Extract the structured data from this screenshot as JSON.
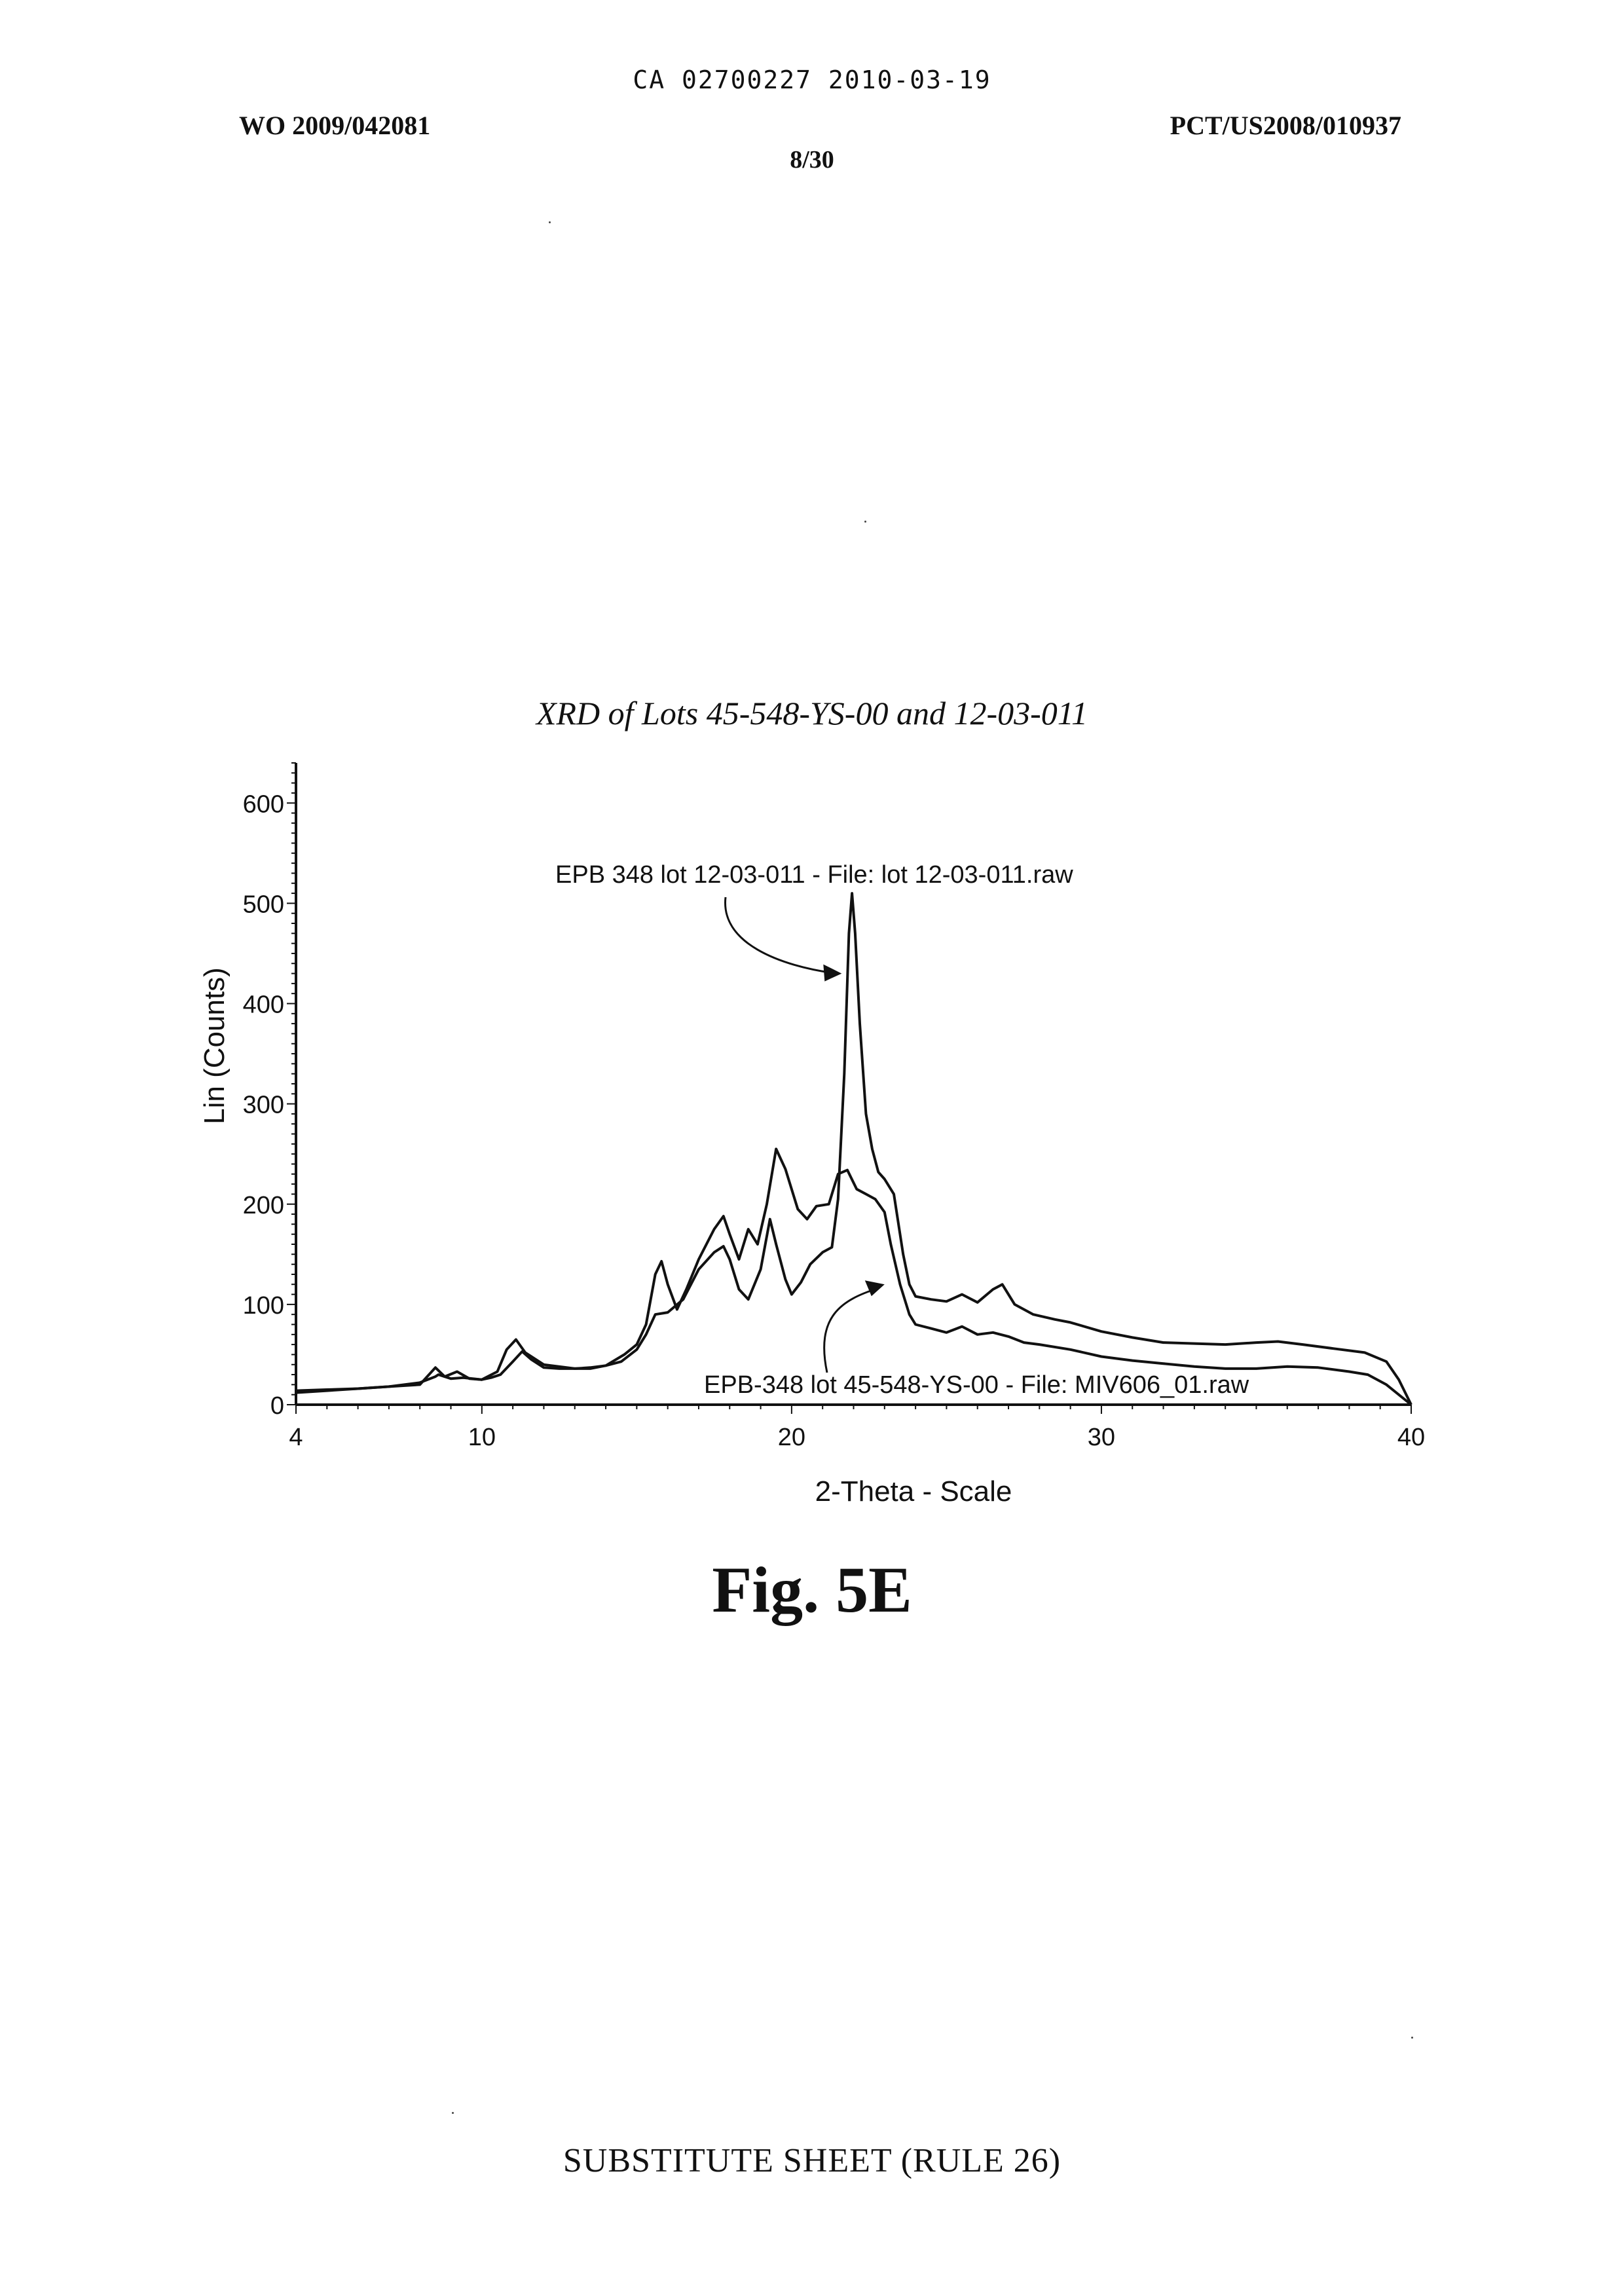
{
  "header": {
    "ca_number": "CA 02700227 2010-03-19",
    "wo_number": "WO 2009/042081",
    "pct_number": "PCT/US2008/010937",
    "sheet_number": "8/30"
  },
  "figure_label": "Fig. 5E",
  "footer": "SUBSTITUTE SHEET (RULE 26)",
  "chart_data": {
    "type": "line",
    "title": "XRD of Lots 45-548-YS-00 and 12-03-011",
    "xlabel": "2-Theta - Scale",
    "ylabel": "Lin (Counts)",
    "xlim": [
      4,
      40
    ],
    "ylim": [
      0,
      640
    ],
    "x_ticks": [
      4,
      10,
      20,
      30,
      40
    ],
    "y_ticks": [
      0,
      100,
      200,
      300,
      400,
      500,
      600
    ],
    "grid": false,
    "annotations": [
      {
        "text": "EPB 348 lot 12-03-011 - File: lot 12-03-011.raw",
        "x": 21.7,
        "y": 430
      },
      {
        "text": "EPB-348 lot 45-548-YS-00 - File: MIV606_01.raw",
        "x": 23.0,
        "y": 120
      }
    ],
    "series": [
      {
        "name": "EPB 348 lot 12-03-011 - File: lot 12-03-011.raw",
        "points": [
          [
            4,
            14
          ],
          [
            5,
            15
          ],
          [
            6,
            16
          ],
          [
            7,
            18
          ],
          [
            8,
            22
          ],
          [
            8.5,
            28
          ],
          [
            8.6,
            30
          ],
          [
            9,
            26
          ],
          [
            9.4,
            27
          ],
          [
            10,
            25
          ],
          [
            10.3,
            27
          ],
          [
            10.6,
            30
          ],
          [
            11,
            43
          ],
          [
            11.3,
            53
          ],
          [
            11.6,
            45
          ],
          [
            12,
            37
          ],
          [
            12.5,
            36
          ],
          [
            13,
            36
          ],
          [
            13.5,
            37
          ],
          [
            14,
            39
          ],
          [
            14.5,
            43
          ],
          [
            15,
            55
          ],
          [
            15.3,
            70
          ],
          [
            15.6,
            90
          ],
          [
            16,
            92
          ],
          [
            16.5,
            105
          ],
          [
            17,
            135
          ],
          [
            17.5,
            152
          ],
          [
            17.8,
            158
          ],
          [
            18,
            145
          ],
          [
            18.3,
            115
          ],
          [
            18.6,
            105
          ],
          [
            19,
            135
          ],
          [
            19.3,
            185
          ],
          [
            19.5,
            160
          ],
          [
            19.8,
            125
          ],
          [
            20,
            110
          ],
          [
            20.3,
            122
          ],
          [
            20.6,
            140
          ],
          [
            21,
            152
          ],
          [
            21.3,
            157
          ],
          [
            21.5,
            205
          ],
          [
            21.7,
            330
          ],
          [
            21.85,
            470
          ],
          [
            21.95,
            510
          ],
          [
            22.05,
            470
          ],
          [
            22.2,
            380
          ],
          [
            22.4,
            290
          ],
          [
            22.6,
            255
          ],
          [
            22.8,
            232
          ],
          [
            23,
            225
          ],
          [
            23.3,
            210
          ],
          [
            23.6,
            150
          ],
          [
            23.8,
            120
          ],
          [
            24,
            108
          ],
          [
            24.5,
            105
          ],
          [
            25,
            103
          ],
          [
            25.5,
            110
          ],
          [
            26,
            102
          ],
          [
            26.5,
            115
          ],
          [
            26.8,
            120
          ],
          [
            27.2,
            100
          ],
          [
            27.8,
            90
          ],
          [
            28.5,
            85
          ],
          [
            29,
            82
          ],
          [
            30,
            73
          ],
          [
            31,
            67
          ],
          [
            32,
            62
          ],
          [
            33,
            61
          ],
          [
            34,
            60
          ],
          [
            35,
            62
          ],
          [
            35.7,
            63
          ],
          [
            36.5,
            60
          ],
          [
            37.5,
            56
          ],
          [
            38.5,
            52
          ],
          [
            39.2,
            43
          ],
          [
            39.6,
            25
          ],
          [
            40,
            0
          ]
        ]
      },
      {
        "name": "EPB-348 lot 45-548-YS-00 - File: MIV606_01.raw",
        "points": [
          [
            4,
            12
          ],
          [
            5,
            14
          ],
          [
            6,
            16
          ],
          [
            7,
            18
          ],
          [
            8,
            20
          ],
          [
            8.5,
            37
          ],
          [
            8.8,
            28
          ],
          [
            9.2,
            33
          ],
          [
            9.6,
            26
          ],
          [
            10,
            25
          ],
          [
            10.5,
            33
          ],
          [
            10.8,
            55
          ],
          [
            11.1,
            65
          ],
          [
            11.4,
            52
          ],
          [
            12,
            40
          ],
          [
            12.5,
            38
          ],
          [
            13,
            36
          ],
          [
            13.5,
            36
          ],
          [
            14,
            39
          ],
          [
            14.6,
            50
          ],
          [
            15,
            60
          ],
          [
            15.3,
            80
          ],
          [
            15.6,
            130
          ],
          [
            15.8,
            143
          ],
          [
            16,
            120
          ],
          [
            16.3,
            95
          ],
          [
            16.6,
            115
          ],
          [
            17,
            145
          ],
          [
            17.5,
            175
          ],
          [
            17.8,
            188
          ],
          [
            18,
            170
          ],
          [
            18.3,
            145
          ],
          [
            18.6,
            175
          ],
          [
            18.9,
            160
          ],
          [
            19.2,
            200
          ],
          [
            19.5,
            255
          ],
          [
            19.8,
            235
          ],
          [
            20.2,
            195
          ],
          [
            20.5,
            185
          ],
          [
            20.8,
            198
          ],
          [
            21.2,
            200
          ],
          [
            21.5,
            230
          ],
          [
            21.8,
            234
          ],
          [
            22.1,
            215
          ],
          [
            22.4,
            210
          ],
          [
            22.7,
            205
          ],
          [
            23,
            192
          ],
          [
            23.2,
            160
          ],
          [
            23.5,
            120
          ],
          [
            23.8,
            90
          ],
          [
            24,
            80
          ],
          [
            24.5,
            76
          ],
          [
            25,
            72
          ],
          [
            25.5,
            78
          ],
          [
            26,
            70
          ],
          [
            26.5,
            72
          ],
          [
            27,
            68
          ],
          [
            27.5,
            62
          ],
          [
            28,
            60
          ],
          [
            29,
            55
          ],
          [
            30,
            48
          ],
          [
            31,
            44
          ],
          [
            32,
            41
          ],
          [
            33,
            38
          ],
          [
            34,
            36
          ],
          [
            35,
            36
          ],
          [
            36,
            38
          ],
          [
            37,
            37
          ],
          [
            38,
            33
          ],
          [
            38.6,
            30
          ],
          [
            39.2,
            20
          ],
          [
            40,
            0
          ]
        ]
      }
    ]
  }
}
